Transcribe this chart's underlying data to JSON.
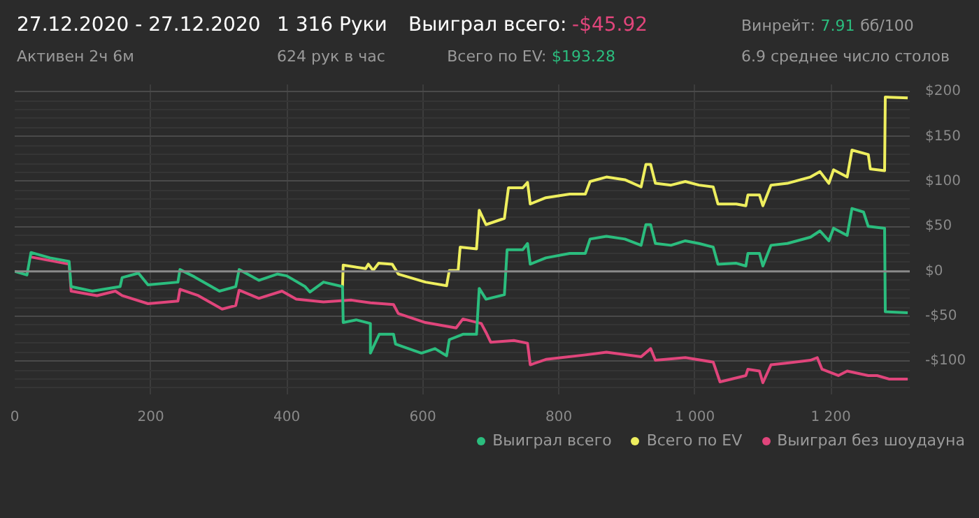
{
  "chart_data": {
    "type": "line",
    "annotations": [
      "27.12.2020 - 27.12.2020",
      "Активен 2ч 6м",
      "1 316 Руки",
      "624 рук в час",
      "Выиграл всего:",
      "-$45.92",
      "Всего по EV:",
      "$193.28",
      "Винрейт:",
      "7.91",
      "бб/100",
      "6.9 среднее число столов"
    ],
    "series": [
      {
        "name": "Выиграл всего",
        "color": "#2bbd7e",
        "x": [
          0,
          18,
          24,
          52,
          80,
          83,
          114,
          155,
          158,
          182,
          196,
          240,
          243,
          264,
          301,
          325,
          330,
          359,
          386,
          400,
          427,
          434,
          454,
          482,
          483,
          502,
          523,
          523,
          536,
          557,
          560,
          598,
          618,
          635,
          639,
          659,
          679,
          683,
          693,
          720,
          724,
          747,
          754,
          758,
          781,
          816,
          839,
          846,
          870,
          897,
          921,
          928,
          935,
          942,
          965,
          986,
          1006,
          1027,
          1034,
          1061,
          1075,
          1078,
          1095,
          1100,
          1112,
          1136,
          1170,
          1184,
          1197,
          1204,
          1224,
          1231,
          1248,
          1255,
          1279,
          1280,
          1313
        ],
        "values": [
          0,
          -4,
          21,
          15,
          11,
          -17,
          -22,
          -17,
          -7,
          -2,
          -15,
          -12,
          2,
          -6,
          -22,
          -17,
          2,
          -10,
          -3,
          -5,
          -17,
          -23,
          -12,
          -17,
          -57,
          -54,
          -58,
          -91,
          -70,
          -70,
          -81,
          -91,
          -86,
          -94,
          -76,
          -70,
          -70,
          -19,
          -31,
          -26,
          24,
          24,
          31,
          8,
          15,
          20,
          20,
          36,
          39,
          36,
          29,
          52,
          52,
          31,
          29,
          34,
          31,
          27,
          8,
          9,
          6,
          20,
          20,
          6,
          29,
          31,
          38,
          45,
          34,
          48,
          40,
          70,
          66,
          50,
          48,
          -45,
          -46
        ]
      },
      {
        "name": "Всего по EV",
        "color": "#eeee5e",
        "x": [
          482,
          483,
          516,
          520,
          527,
          535,
          555,
          564,
          604,
          635,
          639,
          652,
          655,
          679,
          683,
          693,
          720,
          726,
          747,
          754,
          758,
          781,
          816,
          839,
          846,
          870,
          897,
          921,
          928,
          935,
          942,
          965,
          986,
          1006,
          1027,
          1034,
          1061,
          1075,
          1078,
          1095,
          1100,
          1112,
          1136,
          1170,
          1184,
          1197,
          1204,
          1224,
          1231,
          1255,
          1258,
          1279,
          1280,
          1313
        ],
        "values": [
          -17,
          7,
          3,
          8,
          1,
          9,
          8,
          -3,
          -12,
          -16,
          1,
          1,
          27,
          25,
          68,
          52,
          59,
          93,
          93,
          99,
          75,
          82,
          86,
          86,
          100,
          105,
          102,
          94,
          119,
          119,
          98,
          96,
          100,
          96,
          94,
          75,
          75,
          73,
          85,
          85,
          73,
          96,
          98,
          105,
          111,
          98,
          113,
          105,
          135,
          130,
          114,
          112,
          194,
          193
        ]
      },
      {
        "name": "Выиграл без шоудауна",
        "color": "#e0457b",
        "x": [
          24,
          80,
          83,
          121,
          148,
          158,
          196,
          240,
          243,
          270,
          305,
          325,
          330,
          359,
          393,
          414,
          454,
          495,
          523,
          557,
          564,
          604,
          649,
          659,
          686,
          693,
          700,
          734,
          754,
          758,
          781,
          839,
          870,
          921,
          935,
          942,
          986,
          1027,
          1037,
          1075,
          1078,
          1095,
          1100,
          1112,
          1136,
          1170,
          1180,
          1187,
          1211,
          1224,
          1255,
          1268,
          1286,
          1313
        ],
        "values": [
          16,
          8,
          -22,
          -27,
          -22,
          -27,
          -36,
          -33,
          -20,
          -27,
          -42,
          -38,
          -21,
          -30,
          -22,
          -31,
          -34,
          -32,
          -35,
          -37,
          -47,
          -57,
          -63,
          -53,
          -58,
          -68,
          -79,
          -77,
          -80,
          -104,
          -98,
          -93,
          -90,
          -95,
          -86,
          -99,
          -96,
          -101,
          -123,
          -116,
          -109,
          -111,
          -124,
          -104,
          -102,
          -99,
          -96,
          -109,
          -116,
          -111,
          -116,
          -116,
          -120,
          -120
        ]
      }
    ],
    "xlim": [
      0,
      1316
    ],
    "xticks": [
      0,
      200,
      400,
      600,
      800,
      {
        "value": 1000,
        "label": "1 000"
      },
      {
        "value": 1200,
        "label": "1 200"
      }
    ],
    "ylim": [
      -137,
      208
    ],
    "yticks": [
      {
        "value": -100,
        "label": "-$100"
      },
      {
        "value": -50,
        "label": "-$50"
      },
      {
        "value": 0,
        "label": "$0"
      },
      {
        "value": 50,
        "label": "$50"
      },
      {
        "value": 100,
        "label": "$100"
      },
      {
        "value": 150,
        "label": "$150"
      },
      {
        "value": 200,
        "label": "$200"
      }
    ],
    "ref_lines": [
      {
        "axis": "y",
        "value": 0,
        "color": "#8a8a8a"
      }
    ],
    "grid": true,
    "legend": "bottom",
    "line_style": "solid"
  }
}
